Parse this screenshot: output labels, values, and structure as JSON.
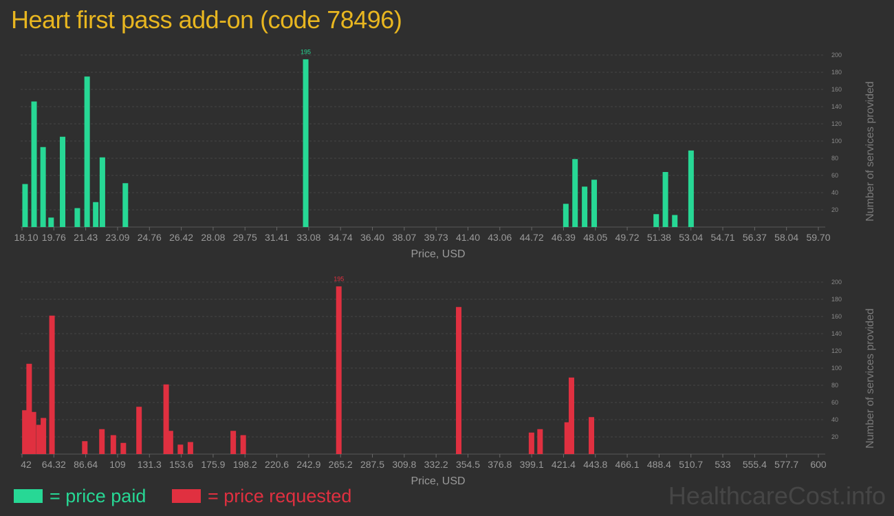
{
  "title": "Heart first pass add-on (code 78496)",
  "watermark": "HealthcareCost.info",
  "legend": {
    "paid": {
      "label": "= price paid",
      "color": "#27d895"
    },
    "requested": {
      "label": "= price requested",
      "color": "#e03040"
    }
  },
  "chart_data": [
    {
      "type": "bar",
      "title": "",
      "xlabel": "Price, USD",
      "ylabel": "Number of services provided",
      "color": "#27d895",
      "ylim": [
        0,
        200
      ],
      "yticks": [
        20,
        40,
        60,
        80,
        100,
        120,
        140,
        160,
        180,
        200
      ],
      "xlim": [
        18.1,
        59.7
      ],
      "xticks": [
        "18.10",
        "19.76",
        "21.43",
        "23.09",
        "24.76",
        "26.42",
        "28.08",
        "29.75",
        "31.41",
        "33.08",
        "34.74",
        "36.40",
        "38.07",
        "39.73",
        "41.40",
        "43.06",
        "44.72",
        "46.39",
        "48.05",
        "49.72",
        "51.38",
        "53.04",
        "54.71",
        "56.37",
        "58.04",
        "59.70"
      ],
      "max_label": "195",
      "x": [
        18.26,
        18.73,
        19.2,
        19.62,
        20.22,
        20.99,
        21.5,
        21.95,
        22.3,
        23.5,
        32.92,
        46.51,
        46.99,
        47.49,
        47.99,
        51.23,
        51.71,
        52.2,
        53.05,
        59.47
      ],
      "values": [
        50,
        146,
        93,
        11,
        105,
        22,
        175,
        29,
        81,
        51,
        195,
        27,
        79,
        47,
        55,
        15,
        64,
        14,
        89,
        0
      ]
    },
    {
      "type": "bar",
      "title": "",
      "xlabel": "Price, USD",
      "ylabel": "Number of services provided",
      "color": "#e03040",
      "ylim": [
        0,
        200
      ],
      "yticks": [
        20,
        40,
        60,
        80,
        100,
        120,
        140,
        160,
        180,
        200
      ],
      "xlim": [
        42,
        600
      ],
      "xticks": [
        "42",
        "64.32",
        "86.64",
        "109",
        "131.3",
        "153.6",
        "175.9",
        "198.2",
        "220.6",
        "242.9",
        "265.2",
        "287.5",
        "309.8",
        "332.2",
        "354.5",
        "376.8",
        "399.1",
        "421.4",
        "443.8",
        "466.1",
        "488.4",
        "510.7",
        "533",
        "555.4",
        "577.7",
        "600"
      ],
      "max_label": "195",
      "x": [
        44,
        47,
        50,
        54,
        57,
        63,
        86,
        98,
        106,
        113,
        124,
        143,
        146,
        153,
        160,
        190,
        197,
        264,
        348,
        399,
        405,
        424,
        427,
        441,
        462,
        485,
        505,
        565
      ],
      "values": [
        51,
        105,
        49,
        34,
        42,
        161,
        15,
        29,
        22,
        13,
        55,
        81,
        27,
        11,
        14,
        27,
        22,
        195,
        171,
        25,
        29,
        37,
        89,
        43,
        0,
        0,
        0,
        0
      ]
    }
  ]
}
